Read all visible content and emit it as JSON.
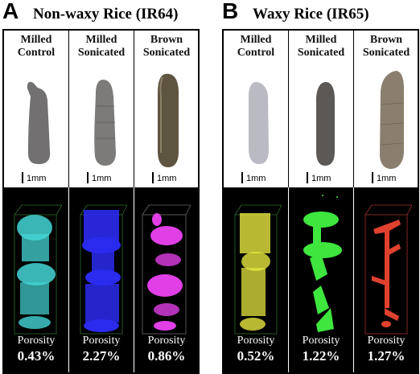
{
  "panels": [
    {
      "letter": "A",
      "title": "Non-waxy Rice (IR64)",
      "columns": [
        {
          "header_line1": "Milled",
          "header_line2": "Control",
          "scale": "1mm",
          "porosity_label": "Porosity",
          "porosity": "0.43%",
          "render_color": "#45d6d6",
          "grain_color": "#727070"
        },
        {
          "header_line1": "Milled",
          "header_line2": "Sonicated",
          "scale": "1mm",
          "porosity_label": "Porosity",
          "porosity": "2.27%",
          "render_color": "#2b2bf0",
          "grain_color": "#7d7b79"
        },
        {
          "header_line1": "Brown",
          "header_line2": "Sonicated",
          "scale": "1mm",
          "porosity_label": "Porosity",
          "porosity": "0.86%",
          "render_color": "#e03fe6",
          "grain_color": "#5e5540"
        }
      ]
    },
    {
      "letter": "B",
      "title": "Waxy Rice (IR65)",
      "columns": [
        {
          "header_line1": "Milled",
          "header_line2": "Control",
          "scale": "1mm",
          "porosity_label": "Porosity",
          "porosity": "0.52%",
          "render_color": "#e6e640",
          "grain_color": "#b9bac2"
        },
        {
          "header_line1": "Milled",
          "header_line2": "Sonicated",
          "scale": "1mm",
          "porosity_label": "Porosity",
          "porosity": "1.22%",
          "render_color": "#3ee63e",
          "grain_color": "#5b5855"
        },
        {
          "header_line1": "Brown",
          "header_line2": "Sonicated",
          "scale": "1mm",
          "porosity_label": "Porosity",
          "porosity": "1.27%",
          "render_color": "#e0412f",
          "grain_color": "#8a7f6e"
        }
      ]
    }
  ]
}
